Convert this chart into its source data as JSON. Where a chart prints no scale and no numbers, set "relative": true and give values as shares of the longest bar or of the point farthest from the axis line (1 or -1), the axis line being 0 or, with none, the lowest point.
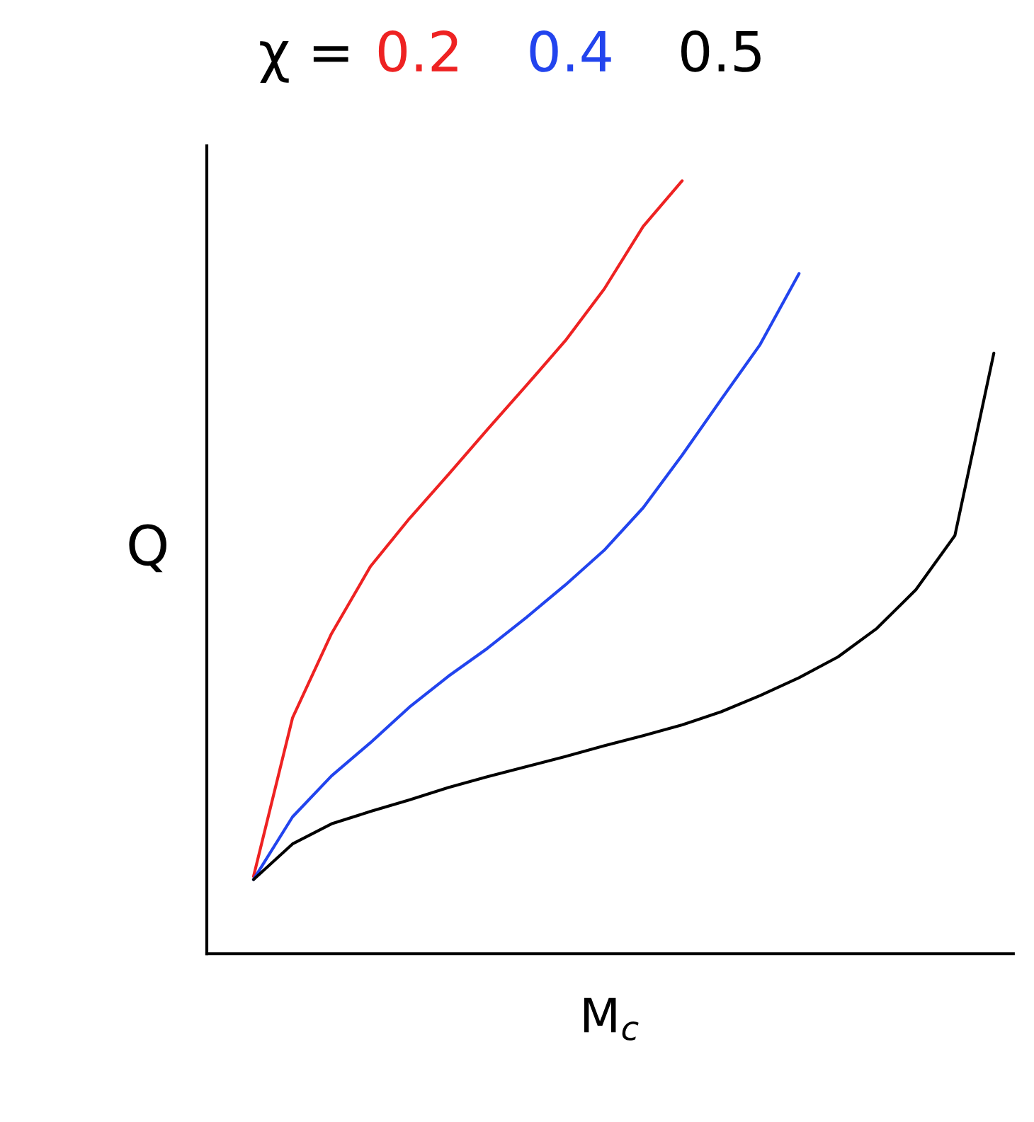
{
  "chart_data": {
    "type": "line",
    "relative": true,
    "title": "χ =",
    "xlabel": "M$_{c}$",
    "ylabel": "Q",
    "marker": "none",
    "line_style": "solid",
    "categories": [
      null,
      null,
      null,
      null,
      null,
      null,
      null,
      null,
      null,
      null,
      null,
      null,
      null,
      null,
      null,
      null,
      null,
      null,
      null,
      null
    ],
    "series": [
      {
        "name": "0.2",
        "color": "#ee2222",
        "values": [
          0.1,
          0.305,
          0.414,
          0.501,
          0.563,
          0.62,
          0.678,
          0.735,
          0.793,
          0.86,
          0.941,
          1.0,
          null,
          null,
          null,
          null,
          null,
          null,
          null,
          null
        ]
      },
      {
        "name": "0.4",
        "color": "#2244ee",
        "values": [
          0.096,
          0.177,
          0.23,
          0.273,
          0.319,
          0.359,
          0.395,
          0.435,
          0.477,
          0.522,
          0.577,
          0.645,
          0.717,
          0.788,
          0.88,
          null,
          null,
          null,
          null,
          null
        ]
      },
      {
        "name": "0.5",
        "color": "#000000",
        "values": [
          0.096,
          0.142,
          0.168,
          0.184,
          0.199,
          0.215,
          0.229,
          0.242,
          0.255,
          0.269,
          0.282,
          0.296,
          0.313,
          0.334,
          0.357,
          0.384,
          0.421,
          0.471,
          0.541,
          0.777
        ]
      }
    ]
  }
}
